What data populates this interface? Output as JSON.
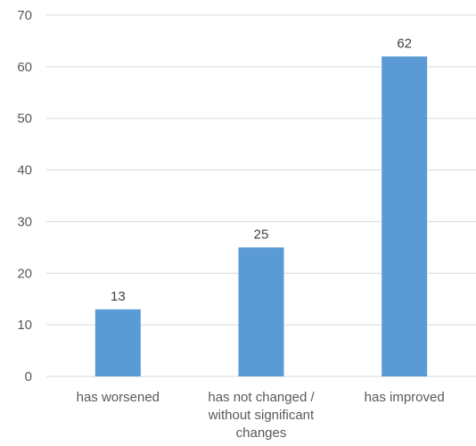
{
  "chart_data": {
    "type": "bar",
    "categories": [
      [
        "has worsened"
      ],
      [
        "has not changed /",
        "without significant",
        "changes"
      ],
      [
        "has improved"
      ]
    ],
    "values": [
      13,
      25,
      62
    ],
    "title": "",
    "xlabel": "",
    "ylabel": "",
    "ylim": [
      0,
      70
    ],
    "yticks": [
      0,
      10,
      20,
      30,
      40,
      50,
      60,
      70
    ],
    "grid": true,
    "legend": "none",
    "bar_color": "#5b9bd5"
  }
}
